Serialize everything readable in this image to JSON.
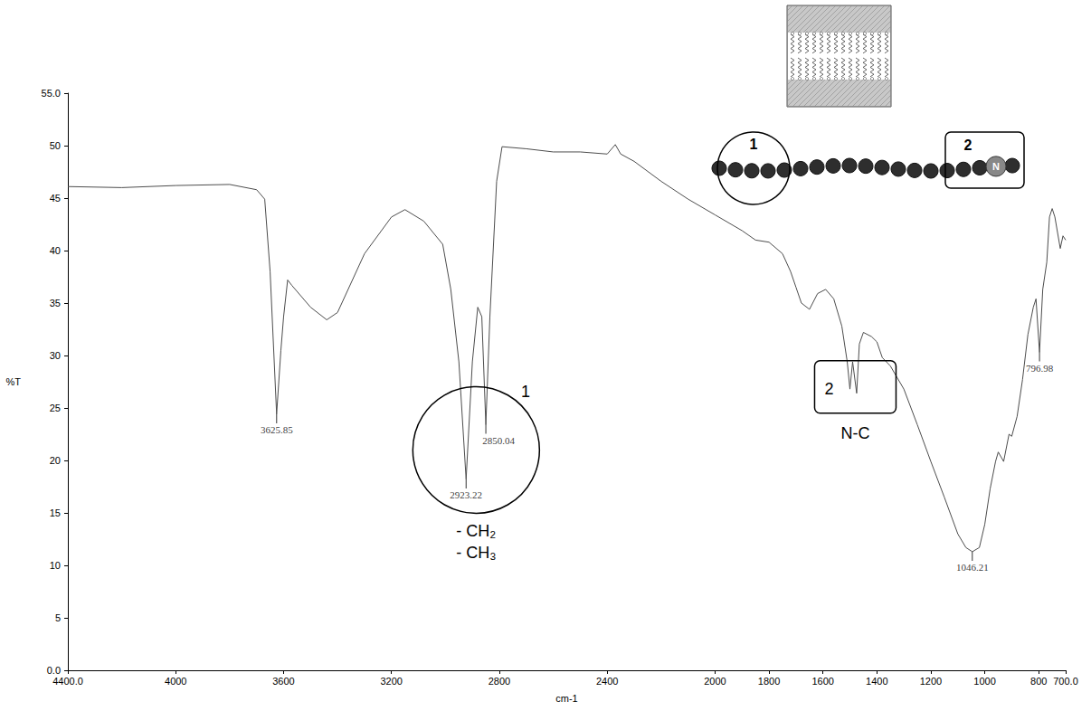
{
  "chart_data": {
    "type": "line",
    "x_label": "cm-1",
    "y_label": "%T",
    "color": "#4d4d4d",
    "xlim": [
      4400,
      700
    ],
    "xticks": [
      {
        "value": 4400,
        "label": "4400.0"
      },
      4000,
      3600,
      3200,
      2800,
      2400,
      2000,
      1800,
      1600,
      1400,
      1200,
      1000,
      800,
      {
        "value": 700,
        "label": "700.0"
      }
    ],
    "ylim": [
      0,
      55
    ],
    "yticks": [
      {
        "value": 0,
        "label": "0.0"
      },
      5,
      10,
      15,
      20,
      25,
      30,
      35,
      40,
      45,
      50,
      {
        "value": 55,
        "label": "55.0"
      }
    ],
    "grid": false,
    "x": [
      4400,
      4200,
      4000,
      3800,
      3700,
      3670,
      3650,
      3625.85,
      3610,
      3600,
      3585,
      3570,
      3500,
      3440,
      3400,
      3300,
      3200,
      3150,
      3080,
      3010,
      2980,
      2950,
      2923.22,
      2900,
      2880,
      2865,
      2850.04,
      2835,
      2810,
      2790,
      2700,
      2600,
      2500,
      2400,
      2370,
      2350,
      2300,
      2200,
      2100,
      2000,
      1900,
      1850,
      1800,
      1750,
      1720,
      1700,
      1680,
      1650,
      1620,
      1590,
      1560,
      1530,
      1510,
      1500,
      1490,
      1475,
      1465,
      1450,
      1420,
      1400,
      1380,
      1350,
      1300,
      1250,
      1200,
      1150,
      1100,
      1070,
      1046.21,
      1020,
      1000,
      980,
      960,
      950,
      930,
      910,
      900,
      880,
      860,
      840,
      820,
      810,
      796.98,
      785,
      770,
      760,
      750,
      740,
      720,
      710,
      700
    ],
    "values": [
      46.1,
      46.0,
      46.2,
      46.3,
      45.8,
      44.9,
      38.0,
      24.4,
      30.5,
      33.7,
      37.2,
      36.7,
      34.6,
      33.4,
      34.1,
      39.7,
      43.2,
      43.9,
      42.8,
      40.6,
      36.3,
      29.4,
      18.2,
      29.4,
      34.6,
      33.7,
      23.4,
      33.7,
      46.6,
      49.9,
      49.7,
      49.4,
      49.4,
      49.2,
      50.1,
      49.2,
      48.5,
      46.6,
      44.9,
      43.4,
      41.9,
      41.0,
      40.8,
      39.7,
      38.0,
      36.5,
      35.0,
      34.4,
      35.9,
      36.3,
      35.4,
      32.8,
      29.4,
      26.8,
      29.4,
      26.4,
      31.1,
      32.2,
      31.8,
      31.3,
      29.8,
      29.0,
      26.8,
      23.4,
      19.9,
      16.5,
      13.0,
      11.7,
      11.3,
      11.7,
      13.9,
      17.3,
      19.9,
      20.8,
      19.9,
      22.5,
      22.3,
      24.2,
      27.7,
      32.0,
      34.6,
      35.4,
      30.3,
      36.3,
      38.9,
      43.2,
      44.0,
      43.2,
      40.2,
      41.4,
      41.0
    ],
    "peaks": [
      {
        "x": 3625.85,
        "y": 24.4
      },
      {
        "x": 2923.22,
        "y": 18.2
      },
      {
        "x": 2850.04,
        "y": 23.4
      },
      {
        "x": 1046.21,
        "y": 11.3
      },
      {
        "x": 796.98,
        "y": 30.3
      }
    ],
    "annotations": [
      {
        "label": "1",
        "x": 2886,
        "y": 21,
        "note": [
          "- CH₂",
          "- CH₃"
        ]
      },
      {
        "label": "2",
        "x": 1480,
        "y": 27,
        "note": [
          "N-C"
        ]
      }
    ],
    "inset": {
      "circle_label": "1",
      "box_label": "2",
      "atom": "N"
    }
  }
}
